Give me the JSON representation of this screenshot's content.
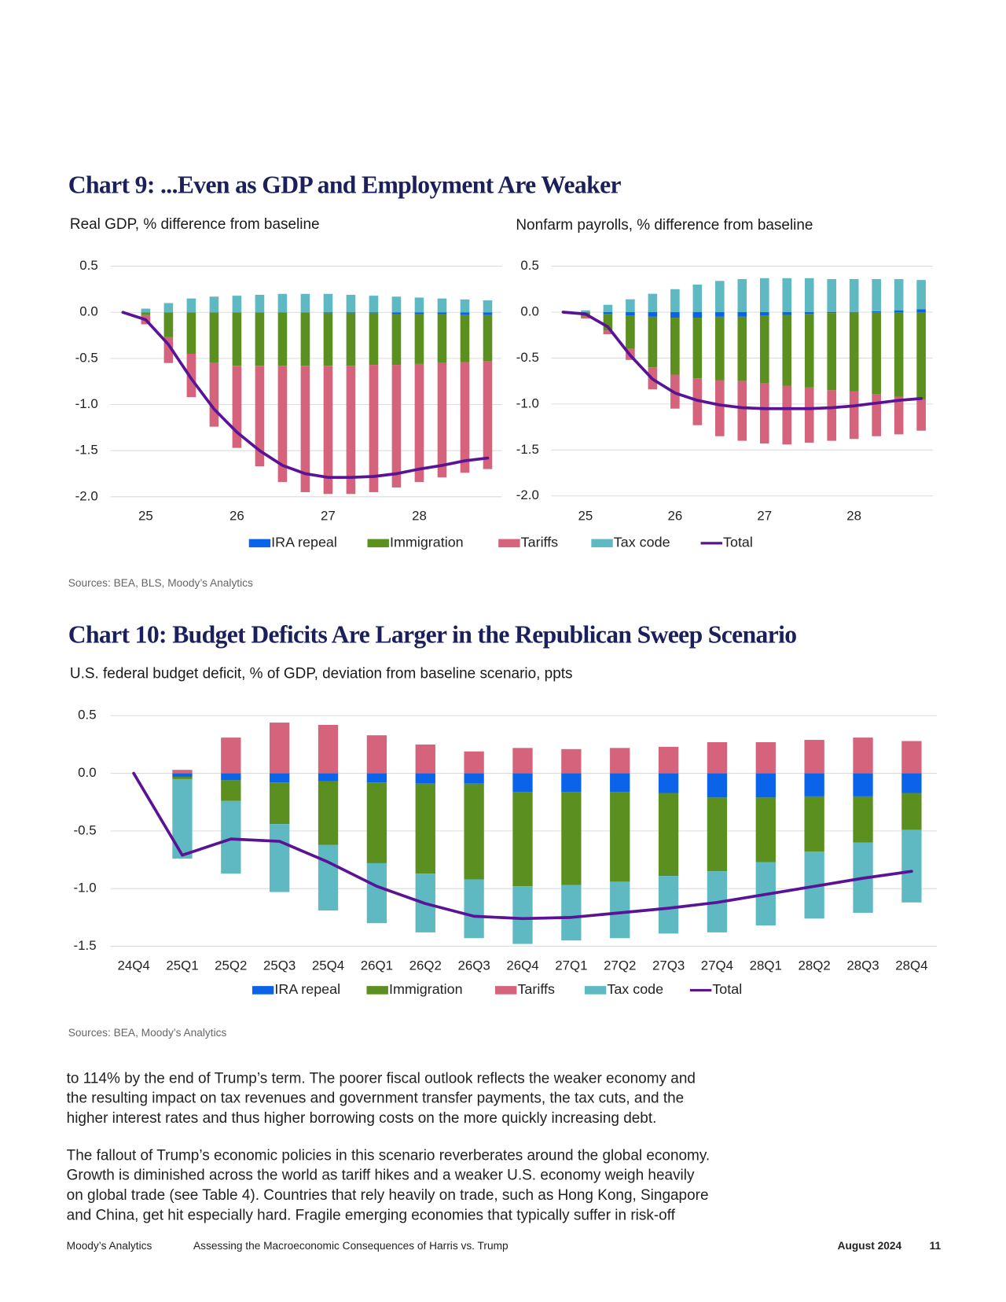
{
  "chart9": {
    "title": "Chart 9: ...Even as GDP and Employment Are Weaker",
    "sources": "Sources: BEA, BLS, Moody’s Analytics"
  },
  "chart10": {
    "title": "Chart 10: Budget Deficits Are Larger in the Republican Sweep Scenario",
    "sources": "Sources: BEA, Moody’s Analytics"
  },
  "chart_data": [
    {
      "type": "bar",
      "stacked": true,
      "title": "Real GDP, % difference from baseline",
      "categories": [
        null,
        "25",
        null,
        null,
        null,
        "26",
        null,
        null,
        null,
        "27",
        null,
        null,
        null,
        "28",
        null,
        null,
        null
      ],
      "ylim": [
        -2,
        0.5
      ],
      "yticks": [
        0.5,
        {
          "value": 0,
          "label": "0.0"
        },
        -0.5,
        {
          "value": -1,
          "label": "-1.0"
        },
        -1.5,
        {
          "value": -2,
          "label": "-2.0"
        }
      ],
      "grid": true,
      "series": [
        {
          "name": "IRA repeal",
          "color": "#0a63e8",
          "values": [
            null,
            0,
            0,
            0,
            0,
            0,
            0,
            0,
            0,
            -0.01,
            -0.01,
            -0.01,
            -0.02,
            -0.02,
            -0.02,
            -0.03,
            -0.03
          ]
        },
        {
          "name": "Immigration",
          "color": "#5b8f1f",
          "values": [
            null,
            -0.03,
            -0.27,
            -0.45,
            -0.55,
            -0.58,
            -0.58,
            -0.58,
            -0.58,
            -0.57,
            -0.57,
            -0.56,
            -0.55,
            -0.54,
            -0.53,
            -0.51,
            -0.5
          ]
        },
        {
          "name": "Tariffs",
          "color": "#d4637b",
          "values": [
            null,
            -0.1,
            -0.28,
            -0.47,
            -0.69,
            -0.89,
            -1.09,
            -1.26,
            -1.37,
            -1.39,
            -1.39,
            -1.38,
            -1.33,
            -1.28,
            -1.24,
            -1.2,
            -1.17
          ]
        },
        {
          "name": "Tax code",
          "color": "#5fb9c3",
          "values": [
            null,
            0.04,
            0.1,
            0.15,
            0.17,
            0.18,
            0.19,
            0.2,
            0.2,
            0.2,
            0.19,
            0.18,
            0.17,
            0.16,
            0.15,
            0.14,
            0.13
          ]
        },
        {
          "name": "Total",
          "type": "line",
          "color": "#5a1394",
          "values": [
            0,
            -0.08,
            -0.35,
            -0.72,
            -1.05,
            -1.3,
            -1.5,
            -1.66,
            -1.75,
            -1.79,
            -1.79,
            -1.78,
            -1.75,
            -1.7,
            -1.66,
            -1.61,
            -1.58
          ]
        }
      ]
    },
    {
      "type": "bar",
      "stacked": true,
      "title": "Nonfarm payrolls, % difference from baseline",
      "categories": [
        null,
        "25",
        null,
        null,
        null,
        "26",
        null,
        null,
        null,
        "27",
        null,
        null,
        null,
        "28",
        null,
        null,
        null
      ],
      "ylim": [
        -2,
        0.5
      ],
      "yticks": [
        0.5,
        {
          "value": 0,
          "label": "0.0"
        },
        -0.5,
        {
          "value": -1,
          "label": "-1.0"
        },
        -1.5,
        {
          "value": -2,
          "label": "-2.0"
        }
      ],
      "grid": true,
      "series": [
        {
          "color": "#0a63e8",
          "values": [
            null,
            0,
            -0.02,
            -0.04,
            -0.05,
            -0.06,
            -0.06,
            -0.05,
            -0.05,
            -0.04,
            -0.03,
            -0.02,
            -0.01,
            0,
            0.01,
            0.02,
            0.03
          ]
        },
        {
          "color": "#5b8f1f",
          "values": [
            null,
            -0.05,
            -0.18,
            -0.36,
            -0.55,
            -0.62,
            -0.66,
            -0.69,
            -0.7,
            -0.73,
            -0.77,
            -0.8,
            -0.84,
            -0.86,
            -0.89,
            -0.92,
            -0.95
          ]
        },
        {
          "color": "#d4637b",
          "values": [
            null,
            -0.02,
            -0.04,
            -0.12,
            -0.24,
            -0.37,
            -0.51,
            -0.61,
            -0.65,
            -0.66,
            -0.64,
            -0.6,
            -0.55,
            -0.52,
            -0.46,
            -0.41,
            -0.34
          ]
        },
        {
          "color": "#5fb9c3",
          "values": [
            null,
            0.02,
            0.08,
            0.14,
            0.2,
            0.25,
            0.3,
            0.34,
            0.36,
            0.37,
            0.37,
            0.37,
            0.36,
            0.36,
            0.35,
            0.34,
            0.32
          ]
        },
        {
          "type": "line",
          "color": "#5a1394",
          "values": [
            0,
            -0.02,
            -0.16,
            -0.47,
            -0.73,
            -0.88,
            -0.96,
            -1.01,
            -1.04,
            -1.05,
            -1.05,
            -1.05,
            -1.04,
            -1.02,
            -0.99,
            -0.96,
            -0.94
          ]
        }
      ]
    },
    {
      "type": "bar",
      "stacked": true,
      "title": "U.S. federal budget deficit, % of GDP, deviation from baseline scenario, ppts",
      "categories": [
        "24Q4",
        "25Q1",
        "25Q2",
        "25Q3",
        "25Q4",
        "26Q1",
        "26Q2",
        "26Q3",
        "26Q4",
        "27Q1",
        "27Q2",
        "27Q3",
        "27Q4",
        "28Q1",
        "28Q2",
        "28Q3",
        "28Q4"
      ],
      "ylim": [
        -1.5,
        0.5
      ],
      "yticks": [
        0.5,
        {
          "value": 0,
          "label": "0.0"
        },
        -0.5,
        {
          "value": -1,
          "label": "-1.0"
        },
        -1.5
      ],
      "grid": true,
      "series": [
        {
          "name": "IRA repeal",
          "color": "#0a63e8",
          "values": [
            null,
            -0.03,
            -0.06,
            -0.08,
            -0.07,
            -0.08,
            -0.09,
            -0.09,
            -0.16,
            -0.16,
            -0.16,
            -0.17,
            -0.21,
            -0.21,
            -0.2,
            -0.2,
            -0.17
          ]
        },
        {
          "name": "Immigration",
          "color": "#5b8f1f",
          "values": [
            null,
            -0.02,
            -0.18,
            -0.36,
            -0.55,
            -0.7,
            -0.78,
            -0.83,
            -0.82,
            -0.81,
            -0.78,
            -0.72,
            -0.64,
            -0.56,
            -0.48,
            -0.4,
            -0.32
          ]
        },
        {
          "name": "Tariffs",
          "color": "#d4637b",
          "values": [
            null,
            0.03,
            0.31,
            0.44,
            0.42,
            0.33,
            0.25,
            0.19,
            0.22,
            0.21,
            0.22,
            0.23,
            0.27,
            0.27,
            0.29,
            0.31,
            0.28
          ]
        },
        {
          "name": "Tax code",
          "color": "#5fb9c3",
          "values": [
            null,
            -0.69,
            -0.63,
            -0.59,
            -0.57,
            -0.52,
            -0.51,
            -0.51,
            -0.5,
            -0.48,
            -0.49,
            -0.5,
            -0.53,
            -0.55,
            -0.58,
            -0.61,
            -0.63
          ]
        },
        {
          "name": "Total",
          "type": "line",
          "color": "#5a1394",
          "values": [
            0,
            -0.71,
            -0.57,
            -0.59,
            -0.77,
            -0.98,
            -1.13,
            -1.24,
            -1.26,
            -1.25,
            -1.21,
            -1.17,
            -1.12,
            -1.05,
            -0.98,
            -0.91,
            -0.85
          ]
        }
      ]
    }
  ],
  "body": {
    "paragraphs": [
      [
        "to 114% by the end of Trump’s term. The poorer fiscal outlook reflects the weaker economy and",
        "the resulting impact on tax revenues and government transfer payments, the tax cuts, and the",
        "higher interest rates and thus higher borrowing costs on the more quickly increasing debt."
      ],
      [
        "The fallout of Trump’s economic policies in this scenario reverberates around the global economy.",
        "Growth is diminished across the world as tariff hikes and a weaker U.S. economy weigh heavily",
        "on global trade (see Table 4). Countries that rely heavily on trade, such as Hong Kong, Singapore",
        "and China, get hit especially hard. Fragile emerging economies that typically suffer in risk-off"
      ]
    ]
  },
  "footer": {
    "publisher": "Moody’s Analytics",
    "report": "Assessing the Macroeconomic Consequences of Harris vs. Trump",
    "date": "August 2024",
    "page": "11"
  }
}
